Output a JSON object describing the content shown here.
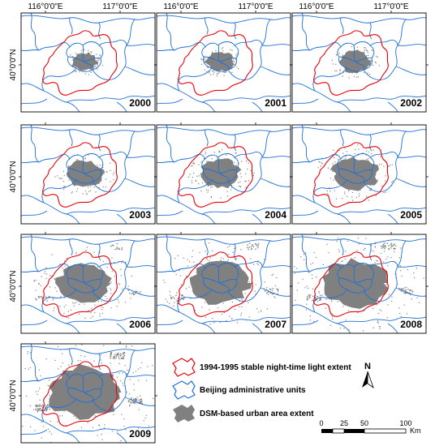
{
  "axis_labels": {
    "lon_left": "116°0'0\"E",
    "lon_right": "117°0'0\"E",
    "lat": "40°0'0\"N"
  },
  "panels": [
    {
      "year": "2000",
      "urban_level": 0.05
    },
    {
      "year": "2001",
      "urban_level": 0.1
    },
    {
      "year": "2002",
      "urban_level": 0.16
    },
    {
      "year": "2003",
      "urban_level": 0.26
    },
    {
      "year": "2004",
      "urban_level": 0.33
    },
    {
      "year": "2005",
      "urban_level": 0.42
    },
    {
      "year": "2006",
      "urban_level": 0.58
    },
    {
      "year": "2007",
      "urban_level": 0.66
    },
    {
      "year": "2008",
      "urban_level": 0.78
    },
    {
      "year": "2009",
      "urban_level": 0.92
    }
  ],
  "legend": {
    "items": [
      {
        "label": "1994-1995 stable night-time light extent",
        "color": "#e8000b"
      },
      {
        "label": "Beijing administrative units",
        "color": "#1f6fd6"
      },
      {
        "label": "DSM-based urban area extent",
        "color": "#808080"
      }
    ]
  },
  "north_arrow": {
    "label": "N"
  },
  "scale_bar": {
    "ticks": [
      "0",
      "25",
      "50",
      "100"
    ],
    "unit": "Km"
  },
  "colors": {
    "night_light": "#e8000b",
    "admin": "#1f6fd6",
    "urban": "#808080",
    "frame": "#000000"
  }
}
